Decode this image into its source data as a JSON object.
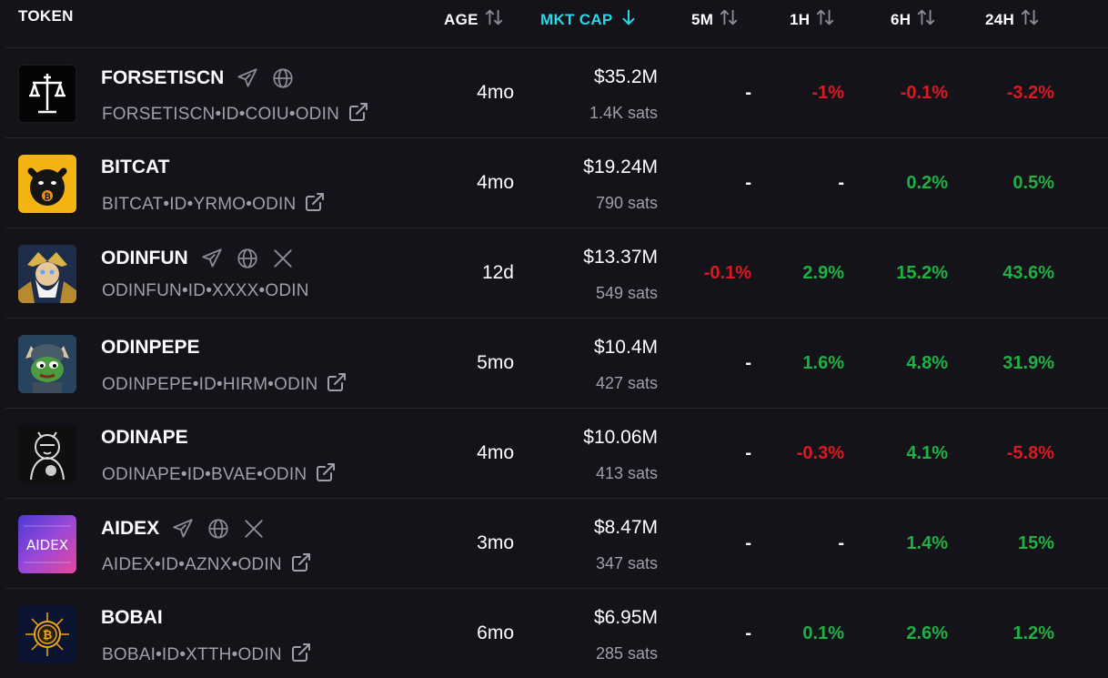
{
  "header": {
    "token": "TOKEN",
    "age": "AGE",
    "mktcap": "MKT CAP",
    "m5": "5M",
    "h1": "1H",
    "h6": "6H",
    "h24": "24H",
    "sorted_color": "#27d9e8"
  },
  "colors": {
    "positive": "#1fb142",
    "negative": "#dd1820",
    "background": "#141319"
  },
  "tokens": [
    {
      "name": "FORSETISCN",
      "ticker": "FORSETISCN•ID•COIU•ODIN",
      "age": "4mo",
      "mcap": "$35.2M",
      "sats": "1.4K sats",
      "m5": "-",
      "h1": "-1%",
      "h6": "-0.1%",
      "h24": "-3.2%",
      "icons": [
        "telegram-icon",
        "globe-icon"
      ],
      "logo": "scales-logo"
    },
    {
      "name": "BITCAT",
      "ticker": "BITCAT•ID•YRMO•ODIN",
      "age": "4mo",
      "mcap": "$19.24M",
      "sats": "790 sats",
      "m5": "-",
      "h1": "-",
      "h6": "0.2%",
      "h24": "0.5%",
      "icons": [],
      "logo": "black-cat-logo"
    },
    {
      "name": "ODINFUN",
      "ticker": "ODINFUN•ID•XXXX•ODIN",
      "age": "12d",
      "mcap": "$13.37M",
      "sats": "549 sats",
      "m5": "-0.1%",
      "h1": "2.9%",
      "h6": "15.2%",
      "h24": "43.6%",
      "icons": [
        "telegram-icon",
        "globe-icon",
        "x-icon"
      ],
      "logo": "odin-warrior-logo"
    },
    {
      "name": "ODINPEPE",
      "ticker": "ODINPEPE•ID•HIRM•ODIN",
      "age": "5mo",
      "mcap": "$10.4M",
      "sats": "427 sats",
      "m5": "-",
      "h1": "1.6%",
      "h6": "4.8%",
      "h24": "31.9%",
      "icons": [],
      "logo": "viking-pepe-logo"
    },
    {
      "name": "ODINAPE",
      "ticker": "ODINAPE•ID•BVAE•ODIN",
      "age": "4mo",
      "mcap": "$10.06M",
      "sats": "413 sats",
      "m5": "-",
      "h1": "-0.3%",
      "h6": "4.1%",
      "h24": "-5.8%",
      "icons": [],
      "logo": "ape-logo"
    },
    {
      "name": "AIDEX",
      "ticker": "AIDEX•ID•AZNX•ODIN",
      "age": "3mo",
      "mcap": "$8.47M",
      "sats": "347 sats",
      "m5": "-",
      "h1": "-",
      "h6": "1.4%",
      "h24": "15%",
      "icons": [
        "telegram-icon",
        "globe-icon",
        "x-icon"
      ],
      "logo": "aidex-logo"
    },
    {
      "name": "BOBAI",
      "ticker": "BOBAI•ID•XTTH•ODIN",
      "age": "6mo",
      "mcap": "$6.95M",
      "sats": "285 sats",
      "m5": "-",
      "h1": "0.1%",
      "h6": "2.6%",
      "h24": "1.2%",
      "icons": [],
      "logo": "bitcoin-circuit-logo"
    }
  ]
}
